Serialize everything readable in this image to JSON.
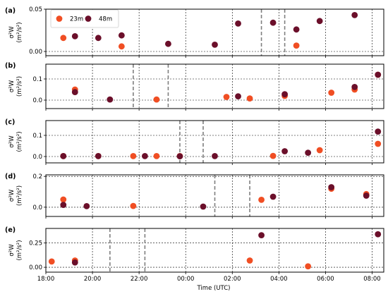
{
  "chart_data": {
    "type": "scatter",
    "xlabel": "Time (UTC)",
    "x_range": [
      "18:00",
      "08:30"
    ],
    "x_ticks": [
      "18:00",
      "20:00",
      "22:00",
      "00:00",
      "02:00",
      "04:00",
      "06:00",
      "08:00"
    ],
    "grid": "dotted",
    "legend": {
      "placement": "top-left (panel a)",
      "entries": [
        "23m",
        "48m"
      ]
    },
    "series_colors": {
      "23m": "#f04e23",
      "48m": "#6b0f2a"
    },
    "vline_color": "#7f7f7f",
    "panels": [
      {
        "label": "(a)",
        "ylabel": "σ²W (m²/s²)",
        "ylim": [
          -0.005,
          0.05
        ],
        "yticks": [
          0.0,
          0.05
        ],
        "ytick_labels": [
          "0.00",
          "0.05"
        ],
        "vlines": [
          "03:15",
          "04:15"
        ],
        "series": [
          {
            "name": "23m",
            "points": [
              [
                "18:45",
                0.016
              ],
              [
                "21:15",
                0.006
              ],
              [
                "04:45",
                0.007
              ]
            ]
          },
          {
            "name": "48m",
            "points": [
              [
                "19:15",
                0.018
              ],
              [
                "20:15",
                0.016
              ],
              [
                "21:15",
                0.019
              ],
              [
                "23:15",
                0.009
              ],
              [
                "01:15",
                0.008
              ],
              [
                "02:15",
                0.033
              ],
              [
                "03:45",
                0.034
              ],
              [
                "04:45",
                0.026
              ],
              [
                "05:45",
                0.036
              ],
              [
                "07:15",
                0.043
              ]
            ]
          }
        ]
      },
      {
        "label": "(b)",
        "ylabel": "σ²W (m²/s²)",
        "ylim": [
          -0.04,
          0.17
        ],
        "yticks": [
          0.0,
          0.1
        ],
        "ytick_labels": [
          "0.0",
          "0.1"
        ],
        "vlines": [
          "21:45",
          "23:15"
        ],
        "series": [
          {
            "name": "23m",
            "points": [
              [
                "19:15",
                0.05
              ],
              [
                "22:45",
                0.003
              ],
              [
                "01:45",
                0.015
              ],
              [
                "02:45",
                0.008
              ],
              [
                "04:15",
                0.02
              ],
              [
                "06:15",
                0.035
              ],
              [
                "07:15",
                0.05
              ],
              [
                "08:15",
                0.12
              ]
            ]
          },
          {
            "name": "48m",
            "points": [
              [
                "19:15",
                0.038
              ],
              [
                "20:45",
                0.003
              ],
              [
                "02:15",
                0.018
              ],
              [
                "04:15",
                0.028
              ],
              [
                "07:15",
                0.062
              ],
              [
                "08:15",
                0.12
              ]
            ]
          }
        ]
      },
      {
        "label": "(c)",
        "ylabel": "σ²W (m²/s²)",
        "ylim": [
          -0.03,
          0.17
        ],
        "yticks": [
          0.0,
          0.1
        ],
        "ytick_labels": [
          "0.0",
          "0.1"
        ],
        "vlines": [
          "23:45",
          "00:45"
        ],
        "series": [
          {
            "name": "23m",
            "points": [
              [
                "18:45",
                0.002
              ],
              [
                "20:15",
                0.002
              ],
              [
                "21:45",
                0.002
              ],
              [
                "22:45",
                0.002
              ],
              [
                "23:45",
                0.002
              ],
              [
                "03:45",
                0.003
              ],
              [
                "05:45",
                0.03
              ],
              [
                "08:15",
                0.06
              ]
            ]
          },
          {
            "name": "48m",
            "points": [
              [
                "18:45",
                0.002
              ],
              [
                "20:15",
                0.002
              ],
              [
                "22:15",
                0.002
              ],
              [
                "23:45",
                0.001
              ],
              [
                "01:15",
                0.002
              ],
              [
                "04:15",
                0.025
              ],
              [
                "05:15",
                0.018
              ],
              [
                "08:15",
                0.118
              ]
            ]
          }
        ]
      },
      {
        "label": "(d)",
        "ylabel": "σ²W (m²/s²)",
        "ylim": [
          -0.06,
          0.21
        ],
        "yticks": [
          0.0,
          0.2
        ],
        "ytick_labels": [
          "0.0",
          "0.2"
        ],
        "vlines": [
          "01:15",
          "02:45"
        ],
        "series": [
          {
            "name": "23m",
            "points": [
              [
                "18:45",
                0.05
              ],
              [
                "21:45",
                0.008
              ],
              [
                "03:15",
                0.048
              ],
              [
                "06:15",
                0.12
              ],
              [
                "07:45",
                0.085
              ]
            ]
          },
          {
            "name": "48m",
            "points": [
              [
                "18:45",
                0.015
              ],
              [
                "19:45",
                0.007
              ],
              [
                "00:45",
                0.004
              ],
              [
                "03:45",
                0.068
              ],
              [
                "06:15",
                0.13
              ],
              [
                "07:45",
                0.075
              ]
            ]
          }
        ]
      },
      {
        "label": "(e)",
        "ylabel": "σ²W (m²/s²)",
        "ylim": [
          -0.05,
          0.4
        ],
        "yticks": [
          0.0,
          0.25
        ],
        "ytick_labels": [
          "0.00",
          "0.25"
        ],
        "vlines": [
          "20:45",
          "22:15"
        ],
        "series": [
          {
            "name": "23m",
            "points": [
              [
                "18:15",
                0.06
              ],
              [
                "19:15",
                0.07
              ],
              [
                "02:45",
                0.07
              ],
              [
                "05:15",
                0.01
              ]
            ]
          },
          {
            "name": "48m",
            "points": [
              [
                "19:15",
                0.05
              ],
              [
                "03:15",
                0.33
              ],
              [
                "08:15",
                0.34
              ]
            ]
          }
        ]
      }
    ]
  }
}
